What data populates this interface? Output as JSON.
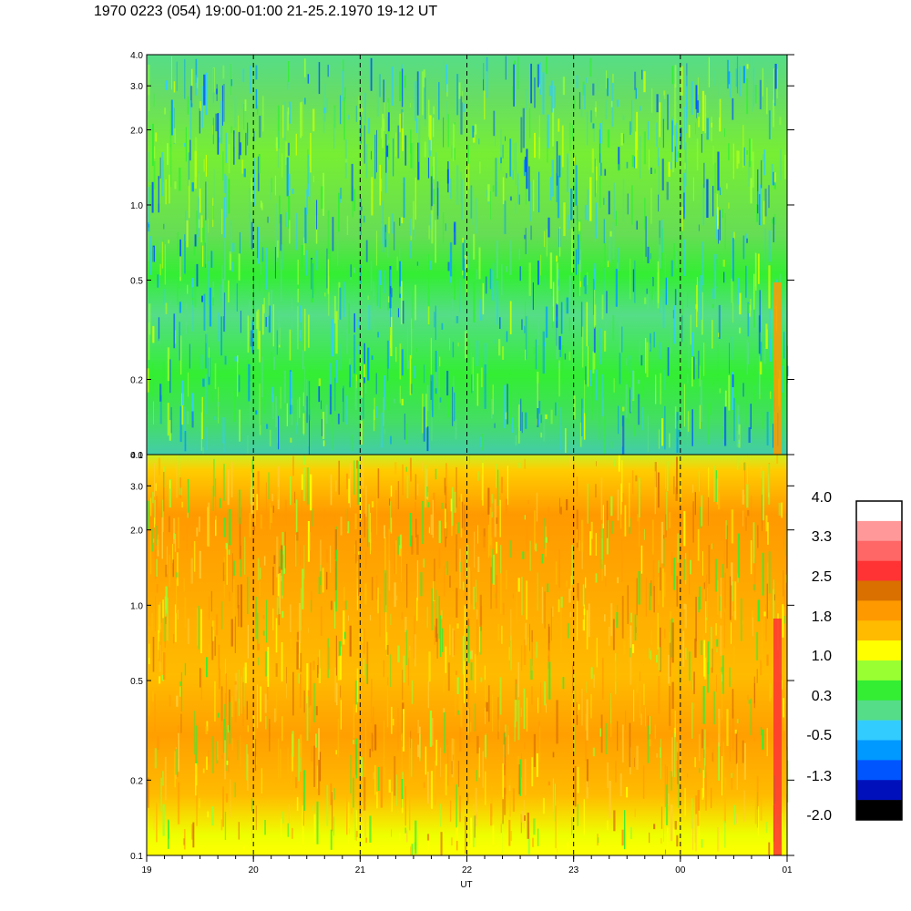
{
  "title": "1970 0223 (054) 19:00-01:00 21-25.2.1970  19-12 UT",
  "chart_data": [
    {
      "type": "heatmap",
      "panel": "upper",
      "y_scale": "log",
      "ylim": [
        0.1,
        4.0
      ],
      "ytick_values": [
        0.1,
        0.2,
        0.5,
        1.0,
        2.0,
        3.0,
        4.0
      ],
      "ytick_labels": [
        "0.1",
        "0.2",
        "0.5",
        "1.0",
        "2.0",
        "3.0",
        "4.0"
      ],
      "dominant_level_range": [
        -0.5,
        1.0
      ]
    },
    {
      "type": "heatmap",
      "panel": "lower",
      "y_scale": "log",
      "ylim": [
        0.1,
        4.0
      ],
      "ytick_values": [
        0.1,
        0.2,
        0.5,
        1.0,
        2.0,
        3.0,
        4.0
      ],
      "ytick_labels": [
        "0.1",
        "0.2",
        "0.5",
        "1.0",
        "2.0",
        "3.0",
        "4.0"
      ],
      "dominant_level_range": [
        1.0,
        2.5
      ]
    }
  ],
  "x_axis": {
    "xlabel": "UT",
    "hours_range": [
      19,
      25
    ],
    "tick_labels": [
      "19",
      "20",
      "21",
      "22",
      "23",
      "00",
      "01"
    ],
    "dashed_hour_lines": [
      20,
      21,
      22,
      23,
      24
    ]
  },
  "colorbar": {
    "labels": [
      "4.0",
      "3.3",
      "2.5",
      "1.8",
      "1.0",
      "0.3",
      "-0.5",
      "-1.3",
      "-2.0"
    ],
    "colors": [
      "#ffffff",
      "#ff9999",
      "#ff6666",
      "#ff3333",
      "#d97000",
      "#ff9900",
      "#ffbb00",
      "#ffff00",
      "#99ff33",
      "#33ee33",
      "#55dd88",
      "#33ccff",
      "#0099ff",
      "#0055ff",
      "#0011bb",
      "#000000"
    ]
  }
}
